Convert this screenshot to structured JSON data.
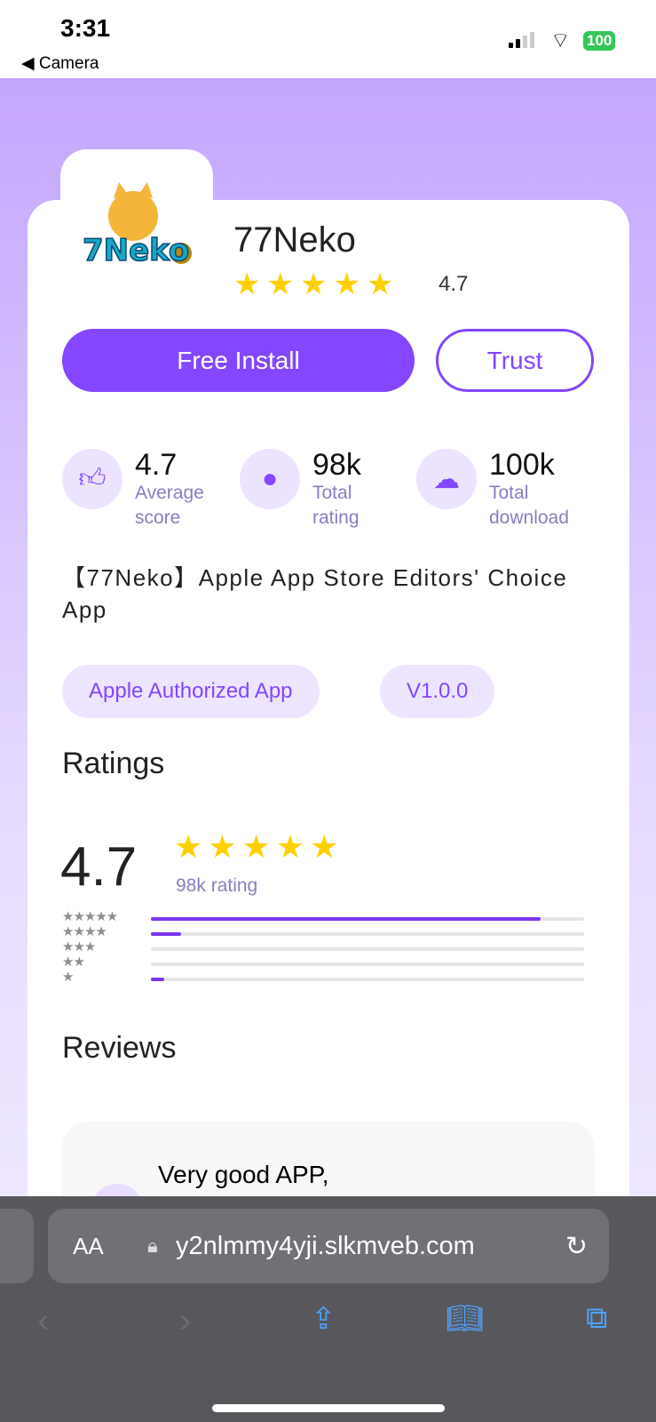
{
  "status": {
    "time": "3:31",
    "back": "◀ Camera",
    "battery": "100"
  },
  "app": {
    "name": "77Neko",
    "rating": "4.7",
    "star_count": 5,
    "install_label": "Free Install",
    "trust_label": "Trust"
  },
  "stats": [
    {
      "value": "4.7",
      "label": "Average score",
      "icon": "thumbs-up-icon"
    },
    {
      "value": "98k",
      "label": "Total rating",
      "icon": "user-icon"
    },
    {
      "value": "100k",
      "label": "Total download",
      "icon": "cloud-download-icon"
    }
  ],
  "description": "【77Neko】Apple App Store Editors' Choice App",
  "chips": [
    "Apple Authorized App",
    "V1.0.0"
  ],
  "ratings": {
    "heading": "Ratings",
    "score": "4.7",
    "count": "98k rating",
    "distribution": [
      {
        "stars": 5,
        "percent": 90
      },
      {
        "stars": 4,
        "percent": 7
      },
      {
        "stars": 3,
        "percent": 0
      },
      {
        "stars": 2,
        "percent": 0
      },
      {
        "stars": 1,
        "percent": 3
      }
    ]
  },
  "reviews": {
    "heading": "Reviews",
    "first_title": "Very good APP,"
  },
  "browser": {
    "aa": "AA",
    "url": "y2nlmmy4yji.slkmveb.com"
  },
  "colors": {
    "accent": "#8446ff",
    "star": "#ffd000",
    "background": "#c4a6ff"
  }
}
